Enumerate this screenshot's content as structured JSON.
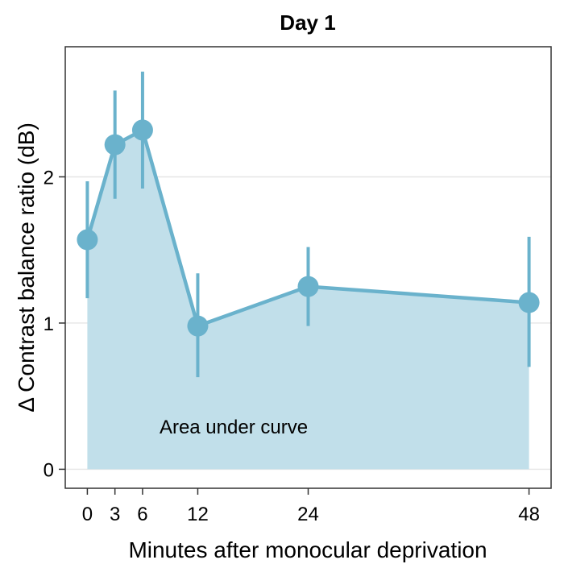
{
  "chart_data": {
    "type": "line",
    "title": "Day 1",
    "xlabel": "Minutes after monocular deprivation",
    "ylabel": "Δ Contrast balance ratio (dB)",
    "annotation": "Area under curve",
    "x": [
      0,
      3,
      6,
      12,
      24,
      48
    ],
    "x_ticks": [
      0,
      3,
      6,
      12,
      24,
      48
    ],
    "y_ticks": [
      0,
      1,
      2
    ],
    "xlim": [
      -2.4,
      50.4
    ],
    "ylim": [
      -0.13,
      2.89
    ],
    "grid": "horizontal major",
    "area_fill": true,
    "series": [
      {
        "values": [
          1.57,
          2.22,
          2.32,
          0.98,
          1.25,
          1.14
        ],
        "error_lower": [
          1.17,
          1.85,
          1.92,
          0.63,
          0.98,
          0.7
        ],
        "error_upper": [
          1.97,
          2.59,
          2.72,
          1.34,
          1.52,
          1.59
        ]
      }
    ],
    "colors": {
      "line": "#6ab2cc",
      "area": "#c1dfea",
      "grid": "#e6e6e6",
      "axis": "#333333"
    }
  }
}
